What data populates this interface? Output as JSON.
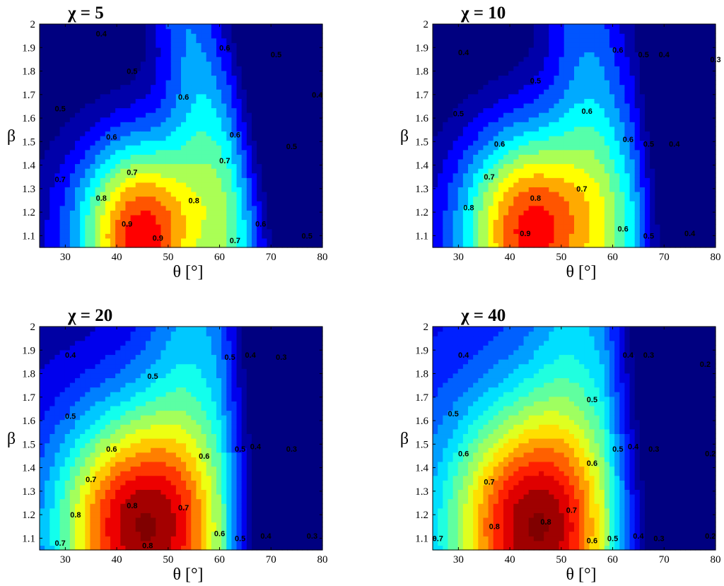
{
  "chart_data": [
    {
      "type": "heatmap",
      "title": "χ = 5",
      "xlabel": "θ [°]",
      "ylabel": "β",
      "xlim": [
        25,
        80
      ],
      "ylim": [
        1.05,
        2
      ],
      "x_ticks": [
        30,
        40,
        50,
        60,
        70,
        80
      ],
      "y_ticks": [
        1.1,
        1.2,
        1.3,
        1.4,
        1.5,
        1.6,
        1.7,
        1.8,
        1.9,
        2
      ],
      "colormap": "jet",
      "color_range": [
        0.35,
        0.95
      ],
      "peak": {
        "theta": 45,
        "beta": 1.1,
        "value": 0.95
      },
      "contour_labels": [
        {
          "value": "0.4",
          "theta": 37,
          "beta": 1.96
        },
        {
          "value": "0.5",
          "theta": 43,
          "beta": 1.8
        },
        {
          "value": "0.5",
          "theta": 29,
          "beta": 1.64
        },
        {
          "value": "0.6",
          "theta": 61,
          "beta": 1.9
        },
        {
          "value": "0.5",
          "theta": 71,
          "beta": 1.87
        },
        {
          "value": "0.6",
          "theta": 53,
          "beta": 1.69
        },
        {
          "value": "0.6",
          "theta": 39,
          "beta": 1.52
        },
        {
          "value": "0.6",
          "theta": 63,
          "beta": 1.53
        },
        {
          "value": "0.5",
          "theta": 74,
          "beta": 1.48
        },
        {
          "value": "0.7",
          "theta": 61,
          "beta": 1.42
        },
        {
          "value": "0.7",
          "theta": 43,
          "beta": 1.37
        },
        {
          "value": "0.7",
          "theta": 29,
          "beta": 1.34
        },
        {
          "value": "0.8",
          "theta": 37,
          "beta": 1.26
        },
        {
          "value": "0.8",
          "theta": 55,
          "beta": 1.25
        },
        {
          "value": "0.9",
          "theta": 42,
          "beta": 1.15
        },
        {
          "value": "0.9",
          "theta": 48,
          "beta": 1.09
        },
        {
          "value": "0.6",
          "theta": 68,
          "beta": 1.15
        },
        {
          "value": "0.7",
          "theta": 63,
          "beta": 1.08
        },
        {
          "value": "0.5",
          "theta": 77,
          "beta": 1.1
        },
        {
          "value": "0.4",
          "theta": 79,
          "beta": 1.7
        }
      ]
    },
    {
      "type": "heatmap",
      "title": "χ = 10",
      "xlabel": "θ [°]",
      "ylabel": "β",
      "xlim": [
        25,
        80
      ],
      "ylim": [
        1.05,
        2
      ],
      "x_ticks": [
        30,
        40,
        50,
        60,
        70,
        80
      ],
      "y_ticks": [
        1.1,
        1.2,
        1.3,
        1.4,
        1.5,
        1.6,
        1.7,
        1.8,
        1.9,
        2
      ],
      "colormap": "jet",
      "color_range": [
        0.35,
        0.95
      ],
      "peak": {
        "theta": 45,
        "beta": 1.12,
        "value": 0.95
      },
      "contour_labels": [
        {
          "value": "0.4",
          "theta": 31,
          "beta": 1.88
        },
        {
          "value": "0.5",
          "theta": 45,
          "beta": 1.76
        },
        {
          "value": "0.5",
          "theta": 30,
          "beta": 1.62
        },
        {
          "value": "0.6",
          "theta": 61,
          "beta": 1.89
        },
        {
          "value": "0.5",
          "theta": 66,
          "beta": 1.87
        },
        {
          "value": "0.4",
          "theta": 70,
          "beta": 1.87
        },
        {
          "value": "0.6",
          "theta": 55,
          "beta": 1.63
        },
        {
          "value": "0.6",
          "theta": 38,
          "beta": 1.49
        },
        {
          "value": "0.6",
          "theta": 63,
          "beta": 1.51
        },
        {
          "value": "0.5",
          "theta": 67,
          "beta": 1.49
        },
        {
          "value": "0.4",
          "theta": 72,
          "beta": 1.49
        },
        {
          "value": "0.7",
          "theta": 36,
          "beta": 1.35
        },
        {
          "value": "0.7",
          "theta": 54,
          "beta": 1.3
        },
        {
          "value": "0.8",
          "theta": 32,
          "beta": 1.22
        },
        {
          "value": "0.8",
          "theta": 45,
          "beta": 1.26
        },
        {
          "value": "0.9",
          "theta": 43,
          "beta": 1.11
        },
        {
          "value": "0.6",
          "theta": 62,
          "beta": 1.13
        },
        {
          "value": "0.5",
          "theta": 67,
          "beta": 1.1
        },
        {
          "value": "0.4",
          "theta": 75,
          "beta": 1.11
        },
        {
          "value": "0.3",
          "theta": 80,
          "beta": 1.85
        }
      ]
    },
    {
      "type": "heatmap",
      "title": "χ = 20",
      "xlabel": "θ [°]",
      "ylabel": "β",
      "xlim": [
        25,
        80
      ],
      "ylim": [
        1.05,
        2
      ],
      "x_ticks": [
        30,
        40,
        50,
        60,
        70,
        80
      ],
      "y_ticks": [
        1.1,
        1.2,
        1.3,
        1.4,
        1.5,
        1.6,
        1.7,
        1.8,
        1.9,
        2
      ],
      "colormap": "jet",
      "color_range": [
        0.25,
        0.95
      ],
      "peak": {
        "theta": 45,
        "beta": 1.15,
        "value": 0.95
      },
      "contour_labels": [
        {
          "value": "0.4",
          "theta": 31,
          "beta": 1.88
        },
        {
          "value": "0.5",
          "theta": 47,
          "beta": 1.79
        },
        {
          "value": "0.5",
          "theta": 31,
          "beta": 1.62
        },
        {
          "value": "0.5",
          "theta": 62,
          "beta": 1.87
        },
        {
          "value": "0.4",
          "theta": 66,
          "beta": 1.88
        },
        {
          "value": "0.3",
          "theta": 72,
          "beta": 1.87
        },
        {
          "value": "0.6",
          "theta": 39,
          "beta": 1.48
        },
        {
          "value": "0.6",
          "theta": 57,
          "beta": 1.45
        },
        {
          "value": "0.5",
          "theta": 64,
          "beta": 1.48
        },
        {
          "value": "0.4",
          "theta": 67,
          "beta": 1.49
        },
        {
          "value": "0.3",
          "theta": 74,
          "beta": 1.48
        },
        {
          "value": "0.7",
          "theta": 35,
          "beta": 1.35
        },
        {
          "value": "0.7",
          "theta": 53,
          "beta": 1.23
        },
        {
          "value": "0.8",
          "theta": 32,
          "beta": 1.2
        },
        {
          "value": "0.8",
          "theta": 43,
          "beta": 1.24
        },
        {
          "value": "0.8",
          "theta": 46,
          "beta": 1.07
        },
        {
          "value": "0.7",
          "theta": 29,
          "beta": 1.08
        },
        {
          "value": "0.6",
          "theta": 60,
          "beta": 1.12
        },
        {
          "value": "0.5",
          "theta": 64,
          "beta": 1.1
        },
        {
          "value": "0.4",
          "theta": 69,
          "beta": 1.11
        },
        {
          "value": "0.3",
          "theta": 78,
          "beta": 1.11
        }
      ]
    },
    {
      "type": "heatmap",
      "title": "χ = 40",
      "xlabel": "θ [°]",
      "ylabel": "β",
      "xlim": [
        25,
        80
      ],
      "ylim": [
        1.05,
        2
      ],
      "x_ticks": [
        30,
        40,
        50,
        60,
        70,
        80
      ],
      "y_ticks": [
        1.1,
        1.2,
        1.3,
        1.4,
        1.5,
        1.6,
        1.7,
        1.8,
        1.9,
        2
      ],
      "colormap": "jet",
      "color_range": [
        0.15,
        0.95
      ],
      "peak": {
        "theta": 45,
        "beta": 1.15,
        "value": 0.95
      },
      "contour_labels": [
        {
          "value": "0.4",
          "theta": 31,
          "beta": 1.88
        },
        {
          "value": "0.5",
          "theta": 56,
          "beta": 1.69
        },
        {
          "value": "0.5",
          "theta": 29,
          "beta": 1.63
        },
        {
          "value": "0.4",
          "theta": 63,
          "beta": 1.88
        },
        {
          "value": "0.3",
          "theta": 67,
          "beta": 1.88
        },
        {
          "value": "0.2",
          "theta": 78,
          "beta": 1.84
        },
        {
          "value": "0.6",
          "theta": 31,
          "beta": 1.46
        },
        {
          "value": "0.6",
          "theta": 56,
          "beta": 1.42
        },
        {
          "value": "0.5",
          "theta": 61,
          "beta": 1.48
        },
        {
          "value": "0.4",
          "theta": 64,
          "beta": 1.49
        },
        {
          "value": "0.3",
          "theta": 68,
          "beta": 1.48
        },
        {
          "value": "0.2",
          "theta": 79,
          "beta": 1.46
        },
        {
          "value": "0.7",
          "theta": 36,
          "beta": 1.34
        },
        {
          "value": "0.7",
          "theta": 52,
          "beta": 1.22
        },
        {
          "value": "0.8",
          "theta": 47,
          "beta": 1.17
        },
        {
          "value": "0.8",
          "theta": 37,
          "beta": 1.15
        },
        {
          "value": "0.7",
          "theta": 26,
          "beta": 1.1
        },
        {
          "value": "0.6",
          "theta": 56,
          "beta": 1.09
        },
        {
          "value": "0.5",
          "theta": 60,
          "beta": 1.1
        },
        {
          "value": "0.4",
          "theta": 65,
          "beta": 1.11
        },
        {
          "value": "0.3",
          "theta": 69,
          "beta": 1.1
        },
        {
          "value": "0.2",
          "theta": 79,
          "beta": 1.11
        }
      ]
    }
  ]
}
